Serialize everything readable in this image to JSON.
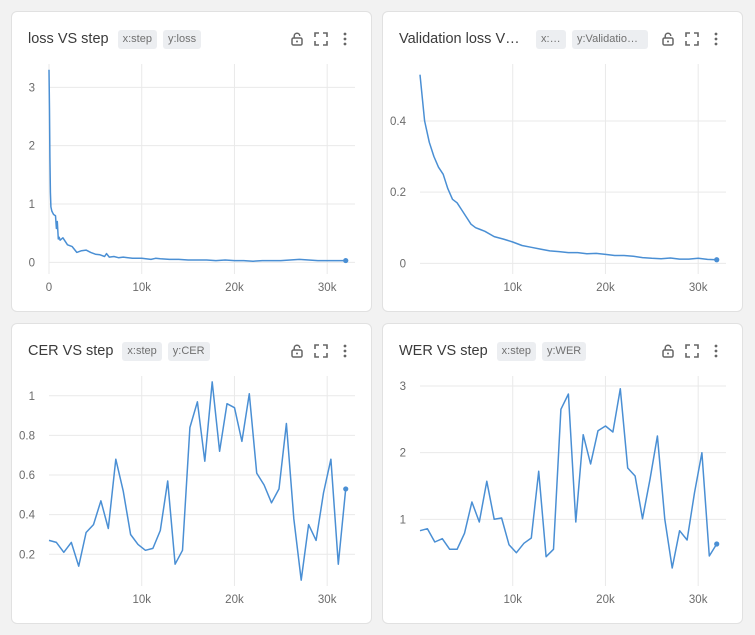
{
  "theme": {
    "line_color": "#4a8fd4",
    "grid_color": "#e9e9e9",
    "background": "#f2f2f2"
  },
  "panels": [
    {
      "title": "loss VS step",
      "chip_x": "x:step",
      "chip_y": "y:loss"
    },
    {
      "title": "Validation loss VS step",
      "chip_x": "x:step",
      "chip_y": "y:Validation loss"
    },
    {
      "title": "CER VS step",
      "chip_x": "x:step",
      "chip_y": "y:CER"
    },
    {
      "title": "WER VS step",
      "chip_x": "x:step",
      "chip_y": "y:WER"
    }
  ],
  "icons": [
    "lock-icon",
    "expand-icon",
    "more-vertical-icon"
  ],
  "chart_data": [
    {
      "type": "line",
      "title": "loss VS step",
      "xlim": [
        0,
        33000
      ],
      "ylim": [
        -0.2,
        3.4
      ],
      "xticks": [
        0,
        10000,
        20000,
        30000
      ],
      "xtick_labels": [
        "0",
        "10k",
        "20k",
        "30k"
      ],
      "yticks": [
        0,
        1,
        2,
        3
      ],
      "ytick_labels": [
        "0",
        "1",
        "2",
        "3"
      ],
      "grid": true,
      "series": [
        {
          "x": [
            0,
            50,
            100,
            150,
            200,
            300,
            400,
            500,
            700,
            800,
            900,
            1000,
            1100,
            1200,
            1500,
            2000,
            2500,
            3000,
            3500,
            4000,
            4500,
            5000,
            5500,
            6000,
            6200,
            6500,
            7000,
            7500,
            8000,
            9000,
            10000,
            11000,
            11500,
            12000,
            13000,
            14000,
            15000,
            16000,
            17000,
            18000,
            19000,
            20000,
            21000,
            22000,
            23000,
            24000,
            25000,
            26000,
            27000,
            28000,
            29000,
            30000,
            31000,
            32000
          ],
          "y": [
            3.3,
            2.6,
            1.8,
            1.2,
            0.95,
            0.88,
            0.85,
            0.82,
            0.8,
            0.58,
            0.7,
            0.4,
            0.43,
            0.38,
            0.42,
            0.3,
            0.27,
            0.17,
            0.2,
            0.21,
            0.17,
            0.14,
            0.13,
            0.1,
            0.15,
            0.09,
            0.1,
            0.08,
            0.09,
            0.07,
            0.07,
            0.05,
            0.07,
            0.06,
            0.05,
            0.05,
            0.04,
            0.04,
            0.04,
            0.03,
            0.04,
            0.03,
            0.03,
            0.02,
            0.03,
            0.03,
            0.03,
            0.04,
            0.05,
            0.04,
            0.03,
            0.03,
            0.03,
            0.03
          ],
          "end_marker": true
        }
      ]
    },
    {
      "type": "line",
      "title": "Validation loss VS step",
      "xlim": [
        0,
        33000
      ],
      "ylim": [
        -0.03,
        0.56
      ],
      "xticks": [
        10000,
        20000,
        30000
      ],
      "xtick_labels": [
        "10k",
        "20k",
        "30k"
      ],
      "yticks": [
        0,
        0.2,
        0.4
      ],
      "ytick_labels": [
        "0",
        "0.2",
        "0.4"
      ],
      "grid": true,
      "series": [
        {
          "x": [
            0,
            500,
            1000,
            1500,
            2000,
            2500,
            3000,
            3500,
            4000,
            4500,
            5000,
            5500,
            6000,
            6500,
            7000,
            8000,
            9000,
            10000,
            11000,
            12000,
            13000,
            14000,
            15000,
            16000,
            17000,
            18000,
            19000,
            20000,
            21000,
            22000,
            23000,
            24000,
            25000,
            26000,
            27000,
            28000,
            29000,
            30000,
            31000,
            32000
          ],
          "y": [
            0.53,
            0.4,
            0.34,
            0.3,
            0.27,
            0.25,
            0.21,
            0.18,
            0.17,
            0.15,
            0.13,
            0.11,
            0.1,
            0.095,
            0.09,
            0.075,
            0.068,
            0.06,
            0.05,
            0.045,
            0.04,
            0.035,
            0.033,
            0.03,
            0.03,
            0.027,
            0.028,
            0.025,
            0.022,
            0.022,
            0.02,
            0.016,
            0.014,
            0.013,
            0.015,
            0.012,
            0.012,
            0.014,
            0.011,
            0.01
          ],
          "end_marker": true
        }
      ]
    },
    {
      "type": "line",
      "title": "CER VS step",
      "xlim": [
        0,
        33000
      ],
      "ylim": [
        0.04,
        1.1
      ],
      "xticks": [
        10000,
        20000,
        30000
      ],
      "xtick_labels": [
        "10k",
        "20k",
        "30k"
      ],
      "yticks": [
        0.2,
        0.4,
        0.6,
        0.8,
        1.0
      ],
      "ytick_labels": [
        "0.2",
        "0.4",
        "0.6",
        "0.8",
        "1"
      ],
      "grid": true,
      "series": [
        {
          "x": [
            0,
            800,
            1600,
            2400,
            3200,
            4000,
            4800,
            5600,
            6400,
            7200,
            8000,
            8800,
            9600,
            10400,
            11200,
            12000,
            12800,
            13600,
            14400,
            15200,
            16000,
            16800,
            17600,
            18400,
            19200,
            20000,
            20800,
            21600,
            22400,
            23200,
            24000,
            24800,
            25600,
            26400,
            27200,
            28000,
            28800,
            29600,
            30400,
            31200,
            32000
          ],
          "y": [
            0.27,
            0.26,
            0.21,
            0.26,
            0.14,
            0.31,
            0.35,
            0.47,
            0.33,
            0.68,
            0.52,
            0.3,
            0.25,
            0.22,
            0.23,
            0.32,
            0.57,
            0.15,
            0.22,
            0.84,
            0.97,
            0.67,
            1.07,
            0.72,
            0.96,
            0.94,
            0.77,
            1.01,
            0.61,
            0.55,
            0.46,
            0.53,
            0.86,
            0.38,
            0.07,
            0.35,
            0.27,
            0.51,
            0.68,
            0.15,
            0.53
          ],
          "end_marker": true
        }
      ]
    },
    {
      "type": "line",
      "title": "WER VS step",
      "xlim": [
        0,
        33000
      ],
      "ylim": [
        0.0,
        3.15
      ],
      "xticks": [
        10000,
        20000,
        30000
      ],
      "xtick_labels": [
        "10k",
        "20k",
        "30k"
      ],
      "yticks": [
        1,
        2,
        3
      ],
      "ytick_labels": [
        "1",
        "2",
        "3"
      ],
      "grid": true,
      "series": [
        {
          "x": [
            0,
            800,
            1600,
            2400,
            3200,
            4000,
            4800,
            5600,
            6400,
            7200,
            8000,
            8800,
            9600,
            10400,
            11200,
            12000,
            12800,
            13600,
            14400,
            15200,
            16000,
            16800,
            17600,
            18400,
            19200,
            20000,
            20800,
            21600,
            22400,
            23200,
            24000,
            24800,
            25600,
            26400,
            27200,
            28000,
            28800,
            29600,
            30400,
            31200,
            32000
          ],
          "y": [
            0.83,
            0.86,
            0.66,
            0.71,
            0.55,
            0.55,
            0.79,
            1.26,
            0.96,
            1.57,
            1.0,
            1.02,
            0.62,
            0.5,
            0.64,
            0.72,
            1.72,
            0.44,
            0.55,
            2.65,
            2.88,
            0.96,
            2.27,
            1.83,
            2.33,
            2.4,
            2.31,
            2.96,
            1.77,
            1.65,
            1.01,
            1.6,
            2.25,
            1.0,
            0.27,
            0.83,
            0.69,
            1.4,
            2.0,
            0.45,
            0.63
          ],
          "end_marker": true
        }
      ]
    }
  ]
}
